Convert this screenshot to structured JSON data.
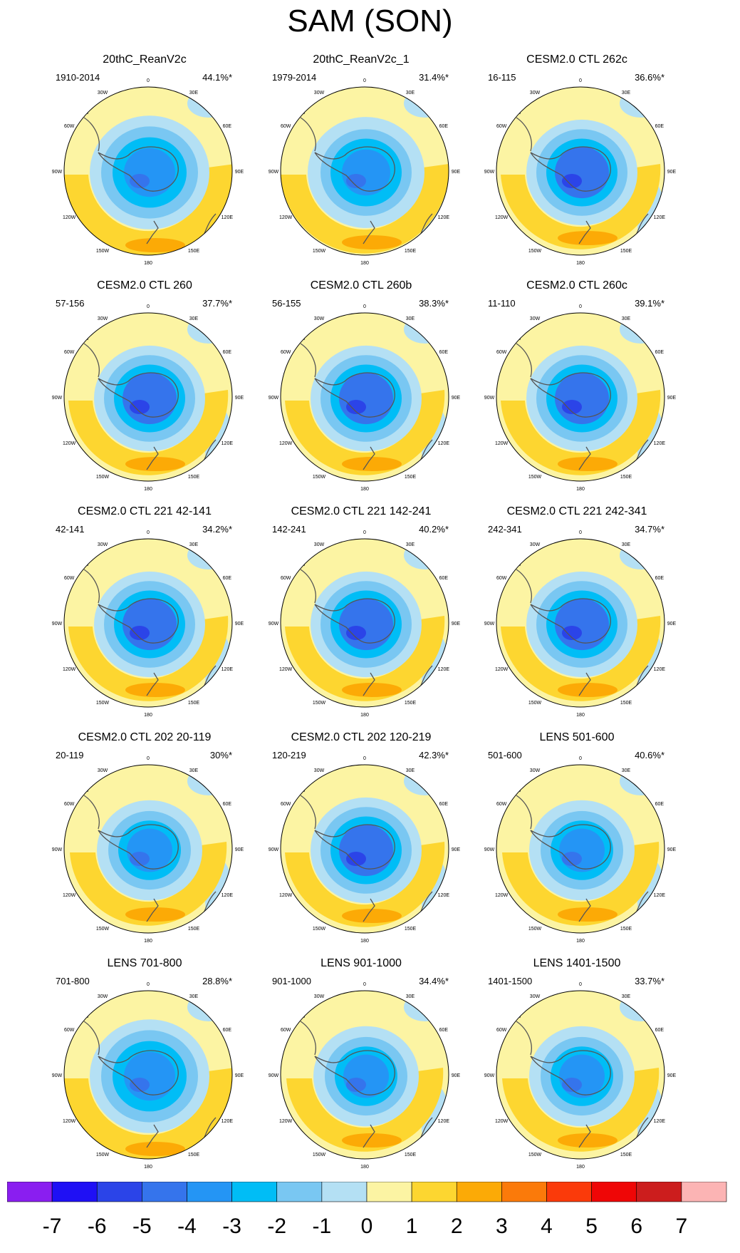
{
  "title": "SAM (SON)",
  "chart_data": {
    "type": "map",
    "title": "SAM (SON)",
    "projection": "south-polar-stereographic",
    "lon_labels": [
      "0",
      "30E",
      "60E",
      "90E",
      "120E",
      "150E",
      "180",
      "150W",
      "120W",
      "90W",
      "60W",
      "30W"
    ],
    "panels": [
      {
        "name": "20thC_ReanV2c",
        "years": "1910-2014",
        "percent": "44.1%*",
        "pattern": "weak",
        "center_value": -4
      },
      {
        "name": "20thC_ReanV2c_1",
        "years": "1979-2014",
        "percent": "31.4%*",
        "pattern": "offset",
        "center_value": -4
      },
      {
        "name": "CESM2.0 CTL 262c",
        "years": "16-115",
        "percent": "36.6%*",
        "pattern": "strong",
        "center_value": -5
      },
      {
        "name": "CESM2.0 CTL 260",
        "years": "57-156",
        "percent": "37.7%*",
        "pattern": "strong",
        "center_value": -5
      },
      {
        "name": "CESM2.0 CTL 260b",
        "years": "56-155",
        "percent": "38.3%*",
        "pattern": "strong",
        "center_value": -5
      },
      {
        "name": "CESM2.0 CTL 260c",
        "years": "11-110",
        "percent": "39.1%*",
        "pattern": "strong",
        "center_value": -5
      },
      {
        "name": "CESM2.0 CTL 221 42-141",
        "years": "42-141",
        "percent": "34.2%*",
        "pattern": "strong",
        "center_value": -5
      },
      {
        "name": "CESM2.0 CTL 221 142-241",
        "years": "142-241",
        "percent": "40.2%*",
        "pattern": "strong",
        "center_value": -5
      },
      {
        "name": "CESM2.0 CTL 221 242-341",
        "years": "242-341",
        "percent": "34.7%*",
        "pattern": "strong",
        "center_value": -5
      },
      {
        "name": "CESM2.0 CTL 202 20-119",
        "years": "20-119",
        "percent": "30%*",
        "pattern": "medium",
        "center_value": -4
      },
      {
        "name": "CESM2.0 CTL 202 120-219",
        "years": "120-219",
        "percent": "42.3%*",
        "pattern": "strong",
        "center_value": -5
      },
      {
        "name": "LENS 501-600",
        "years": "501-600",
        "percent": "40.6%*",
        "pattern": "medium",
        "center_value": -4
      },
      {
        "name": "LENS 701-800",
        "years": "701-800",
        "percent": "28.8%*",
        "pattern": "weak",
        "center_value": -4
      },
      {
        "name": "LENS 901-1000",
        "years": "901-1000",
        "percent": "34.4%*",
        "pattern": "medium",
        "center_value": -4
      },
      {
        "name": "LENS 1401-1500",
        "years": "1401-1500",
        "percent": "33.7%*",
        "pattern": "medium",
        "center_value": -4
      }
    ],
    "colorbar": {
      "labels": [
        "-7",
        "-6",
        "-5",
        "-4",
        "-3",
        "-2",
        "-1",
        "0",
        "1",
        "2",
        "3",
        "4",
        "5",
        "6",
        "7"
      ],
      "colors": [
        "#8a1ef0",
        "#1f10f5",
        "#2b44e8",
        "#3574ec",
        "#2495f5",
        "#00bdf6",
        "#79c7f2",
        "#b4e0f4",
        "#fcf4a3",
        "#fdd630",
        "#fcaa06",
        "#fb7a0a",
        "#fb3a0a",
        "#ef0606",
        "#cc1d1d",
        "#fcb4b4"
      ]
    }
  }
}
